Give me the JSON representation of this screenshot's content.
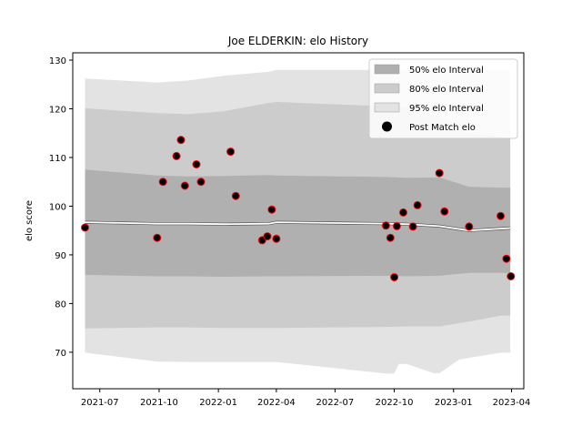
{
  "chart_data": {
    "type": "scatter",
    "title": "Joe ELDERKIN: elo History",
    "xlabel": "",
    "ylabel": "elo score",
    "xlim": [
      "2021-05-20",
      "2023-04-20"
    ],
    "ylim": [
      62.5,
      131.5
    ],
    "x_ticks": [
      "2021-07",
      "2021-10",
      "2022-01",
      "2022-04",
      "2022-07",
      "2022-10",
      "2023-01",
      "2023-04"
    ],
    "y_ticks": [
      70,
      80,
      90,
      100,
      110,
      120,
      130
    ],
    "grid": false,
    "legend_position": "top-right",
    "colors": {
      "band_50": "#b0b0b0",
      "band_80": "#cccccc",
      "band_95": "#e3e3e3",
      "mean_line": "#ffffff",
      "point_fill": "#000000",
      "point_edge": "#ff0000"
    },
    "bands": [
      {
        "name": "95% elo Interval",
        "x": [
          "2021-06-08",
          "2021-09-28",
          "2021-11-15",
          "2022-01-10",
          "2022-03-20",
          "2022-04-01",
          "2022-09-20",
          "2022-10-01",
          "2022-10-08",
          "2022-10-20",
          "2022-12-01",
          "2022-12-10",
          "2023-01-10",
          "2023-03-15",
          "2023-03-30"
        ],
        "upper": [
          126.2,
          125.4,
          125.8,
          126.8,
          127.6,
          128.0,
          128.0,
          128.0,
          128.0,
          128.0,
          128.0,
          128.0,
          128.0,
          128.0,
          128.0
        ],
        "lower": [
          69.9,
          68.1,
          68.0,
          68.0,
          68.0,
          68.0,
          65.6,
          65.6,
          67.6,
          67.6,
          65.7,
          65.7,
          68.5,
          69.9,
          69.9
        ]
      },
      {
        "name": "80% elo Interval",
        "x": [
          "2021-06-08",
          "2021-09-28",
          "2021-11-15",
          "2022-01-10",
          "2022-03-20",
          "2022-04-01",
          "2022-09-20",
          "2022-10-20",
          "2022-12-10",
          "2023-01-25",
          "2023-03-15",
          "2023-03-30"
        ],
        "upper": [
          120.1,
          119.1,
          118.9,
          119.5,
          121.2,
          121.4,
          120.5,
          120.3,
          118.3,
          115.0,
          114.2,
          114.2
        ],
        "lower": [
          74.9,
          75.1,
          75.1,
          75.0,
          75.0,
          75.0,
          75.2,
          75.3,
          75.3,
          76.3,
          77.5,
          77.5
        ]
      },
      {
        "name": "50% elo Interval",
        "x": [
          "2021-06-08",
          "2021-09-28",
          "2021-11-15",
          "2022-01-10",
          "2022-03-20",
          "2022-04-01",
          "2022-09-20",
          "2022-10-20",
          "2022-12-10",
          "2023-01-25",
          "2023-03-15",
          "2023-03-30"
        ],
        "upper": [
          107.5,
          106.3,
          106.1,
          106.2,
          106.4,
          106.3,
          106.0,
          105.8,
          105.9,
          104.0,
          103.8,
          103.8
        ],
        "lower": [
          85.9,
          85.6,
          85.6,
          85.5,
          85.6,
          85.6,
          85.7,
          85.6,
          85.7,
          86.3,
          86.3,
          86.3
        ]
      }
    ],
    "mean_line": {
      "x": [
        "2021-06-08",
        "2021-09-28",
        "2021-11-15",
        "2022-01-10",
        "2022-03-20",
        "2022-04-01",
        "2022-09-20",
        "2022-10-20",
        "2022-12-10",
        "2023-01-25",
        "2023-03-15",
        "2023-03-30"
      ],
      "y": [
        96.7,
        96.4,
        96.4,
        96.3,
        96.4,
        96.7,
        96.4,
        96.3,
        95.9,
        95.0,
        95.4,
        95.5
      ]
    },
    "series": [
      {
        "name": "Post Match elo",
        "points": [
          {
            "x": "2021-06-08",
            "y": 95.6
          },
          {
            "x": "2021-09-28",
            "y": 93.5
          },
          {
            "x": "2021-10-07",
            "y": 105.0
          },
          {
            "x": "2021-10-28",
            "y": 110.3
          },
          {
            "x": "2021-11-04",
            "y": 113.6
          },
          {
            "x": "2021-11-10",
            "y": 104.2
          },
          {
            "x": "2021-11-28",
            "y": 108.6
          },
          {
            "x": "2021-12-05",
            "y": 105.0
          },
          {
            "x": "2022-01-20",
            "y": 111.2
          },
          {
            "x": "2022-01-28",
            "y": 102.1
          },
          {
            "x": "2022-03-10",
            "y": 93.0
          },
          {
            "x": "2022-03-18",
            "y": 93.8
          },
          {
            "x": "2022-03-25",
            "y": 99.3
          },
          {
            "x": "2022-04-01",
            "y": 93.3
          },
          {
            "x": "2022-09-18",
            "y": 96.0
          },
          {
            "x": "2022-09-25",
            "y": 93.5
          },
          {
            "x": "2022-10-01",
            "y": 85.4
          },
          {
            "x": "2022-10-05",
            "y": 95.9
          },
          {
            "x": "2022-10-15",
            "y": 98.7
          },
          {
            "x": "2022-10-30",
            "y": 95.8
          },
          {
            "x": "2022-11-06",
            "y": 100.2
          },
          {
            "x": "2022-12-10",
            "y": 106.8
          },
          {
            "x": "2022-12-18",
            "y": 98.9
          },
          {
            "x": "2023-01-25",
            "y": 95.8
          },
          {
            "x": "2023-03-15",
            "y": 98.0
          },
          {
            "x": "2023-03-24",
            "y": 89.2
          },
          {
            "x": "2023-03-31",
            "y": 85.6
          }
        ]
      }
    ]
  },
  "legend": {
    "items": [
      {
        "label": "50% elo Interval",
        "kind": "patch",
        "color": "#b0b0b0"
      },
      {
        "label": "80% elo Interval",
        "kind": "patch",
        "color": "#cccccc"
      },
      {
        "label": "95% elo Interval",
        "kind": "patch",
        "color": "#e3e3e3"
      },
      {
        "label": "Post Match elo",
        "kind": "marker",
        "color": "#000000"
      }
    ]
  }
}
